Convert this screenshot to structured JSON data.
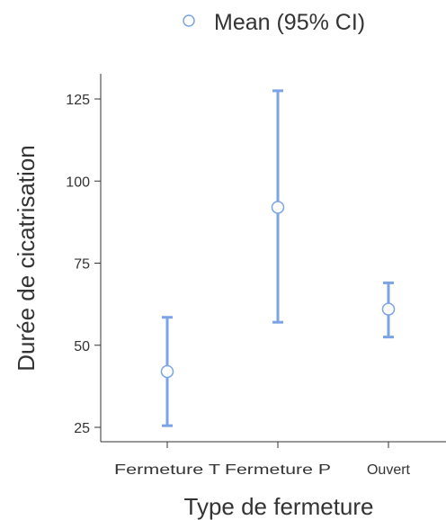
{
  "chart_data": {
    "type": "scatter",
    "title": "",
    "legend": {
      "label": "Mean (95% CI)",
      "placement": "top-right"
    },
    "xlabel": "Type de fermeture",
    "ylabel": "Durée de cicatrisation",
    "categories": [
      "Fermeture T",
      "Fermeture P",
      "Ouvert"
    ],
    "series": [
      {
        "name": "Mean (95% CI)",
        "mean": [
          42,
          92,
          61
        ],
        "ci_lower": [
          25.5,
          57,
          52.5
        ],
        "ci_upper": [
          58.5,
          127.5,
          69
        ]
      }
    ],
    "yticks": [
      25,
      50,
      75,
      100,
      125
    ],
    "ylim": [
      23.5,
      133
    ],
    "grid": false,
    "colors": {
      "marker": "#7ba4e6",
      "axis": "#333333"
    }
  }
}
